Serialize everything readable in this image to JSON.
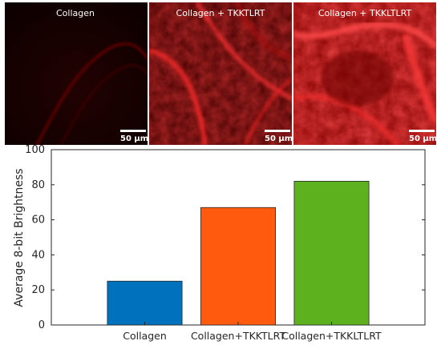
{
  "panels": [
    {
      "label": "Collagen",
      "scale_label": "50 µm",
      "intensity": 25
    },
    {
      "label": "Collagen + TKKTLRT",
      "scale_label": "50 µm",
      "intensity": 67
    },
    {
      "label": "Collagen + TKKLTLRT",
      "scale_label": "50 µm",
      "intensity": 82
    }
  ],
  "colors": {
    "bar1": "#0072BD",
    "bar2": "#FF5A0E",
    "bar3": "#5DB11E",
    "fluorescence": "#ff1a1a"
  },
  "chart_data": {
    "type": "bar",
    "categories": [
      "Collagen",
      "Collagen+TKKTLRT",
      "Collagen+TKKLTLRT"
    ],
    "values": [
      25,
      67,
      82
    ],
    "title": "",
    "xlabel": "",
    "ylabel": "Average 8-bit Brightness",
    "ylim": [
      0,
      100
    ],
    "yticks": [
      0,
      20,
      40,
      60,
      80,
      100
    ],
    "grid": false
  }
}
